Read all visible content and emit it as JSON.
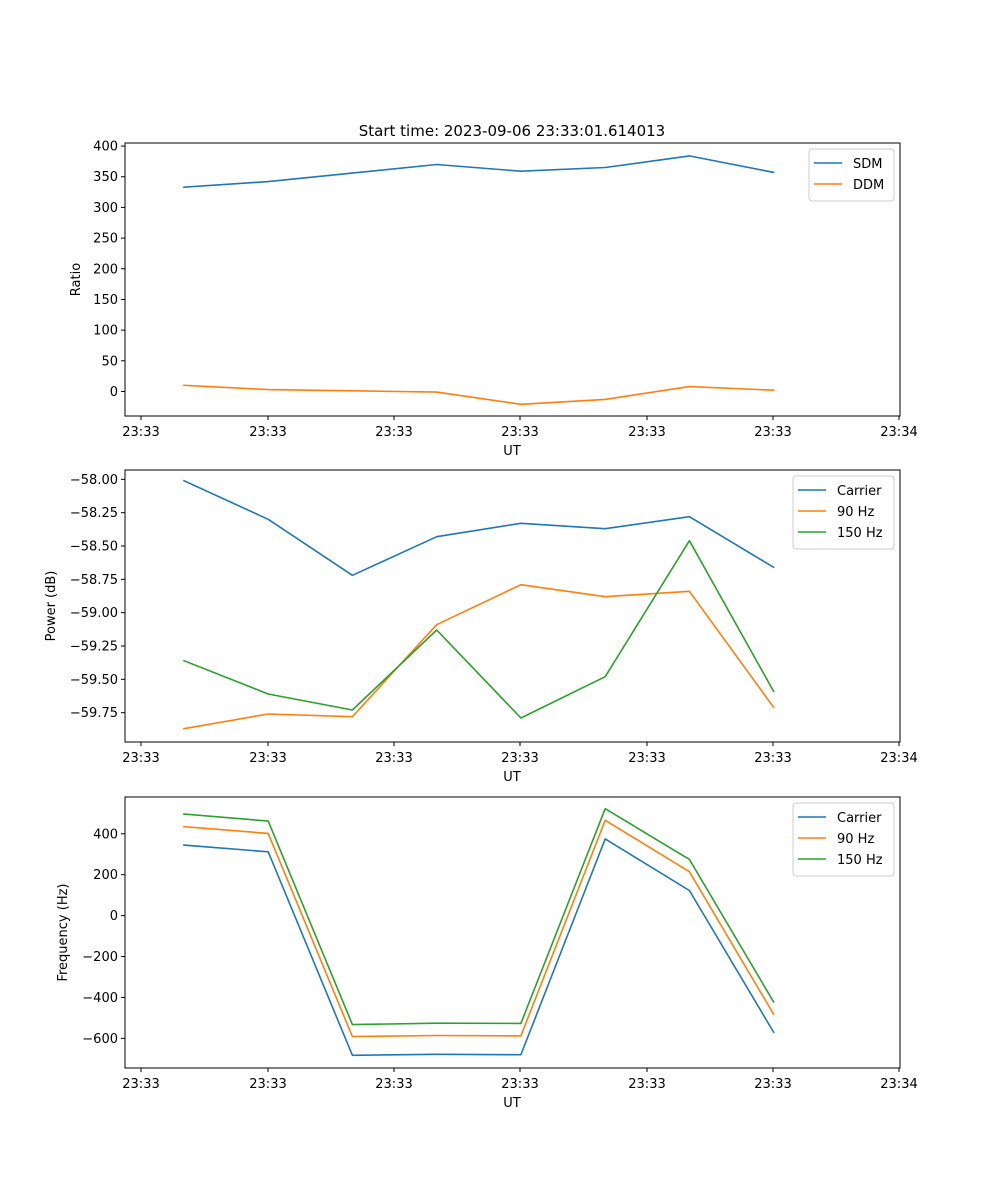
{
  "title": "Start time: 2023-09-06 23:33:01.614013",
  "colors": {
    "blue": "#1f77b4",
    "orange": "#ff7f0e",
    "green": "#2ca02c",
    "axis": "#000000",
    "legend_border": "#cccccc"
  },
  "chart_data": [
    {
      "type": "line",
      "name": "ratio",
      "xlabel": "UT",
      "ylabel": "Ratio",
      "x_tick_labels": [
        "23:33",
        "23:33",
        "23:33",
        "23:33",
        "23:33",
        "23:33",
        "23:34"
      ],
      "x": [
        1,
        2,
        3,
        4,
        5,
        6,
        7,
        8
      ],
      "xlim": [
        0.3,
        9.5
      ],
      "ylim": [
        -40,
        405
      ],
      "y_ticks": [
        0,
        50,
        100,
        150,
        200,
        250,
        300,
        350,
        400
      ],
      "y_tick_labels": [
        "0",
        "50",
        "100",
        "150",
        "200",
        "250",
        "300",
        "350",
        "400"
      ],
      "legend_loc": "upper right",
      "series": [
        {
          "name": "SDM",
          "color": "blue",
          "values": [
            333,
            342,
            356,
            370,
            359,
            365,
            384,
            357
          ]
        },
        {
          "name": "DDM",
          "color": "orange",
          "values": [
            10,
            3,
            1,
            -1,
            -21,
            -13,
            8,
            2
          ]
        }
      ]
    },
    {
      "type": "line",
      "name": "power",
      "xlabel": "UT",
      "ylabel": "Power (dB)",
      "x_tick_labels": [
        "23:33",
        "23:33",
        "23:33",
        "23:33",
        "23:33",
        "23:33",
        "23:34"
      ],
      "x": [
        1,
        2,
        3,
        4,
        5,
        6,
        7,
        8
      ],
      "xlim": [
        0.3,
        9.5
      ],
      "ylim": [
        -59.97,
        -57.93
      ],
      "y_ticks": [
        -58.0,
        -58.25,
        -58.5,
        -58.75,
        -59.0,
        -59.25,
        -59.5,
        -59.75
      ],
      "y_tick_labels": [
        "−58.00",
        "−58.25",
        "−58.50",
        "−58.75",
        "−59.00",
        "−59.25",
        "−59.50",
        "−59.75"
      ],
      "legend_loc": "upper right",
      "series": [
        {
          "name": "Carrier",
          "color": "blue",
          "values": [
            -58.01,
            -58.3,
            -58.72,
            -58.43,
            -58.33,
            -58.37,
            -58.28,
            -58.66
          ]
        },
        {
          "name": "90 Hz",
          "color": "orange",
          "values": [
            -59.87,
            -59.76,
            -59.78,
            -59.09,
            -58.79,
            -58.88,
            -58.84,
            -59.71
          ]
        },
        {
          "name": "150 Hz",
          "color": "green",
          "values": [
            -59.36,
            -59.61,
            -59.73,
            -59.13,
            -59.79,
            -59.48,
            -58.46,
            -59.59
          ]
        }
      ]
    },
    {
      "type": "line",
      "name": "frequency",
      "xlabel": "UT",
      "ylabel": "Frequency (Hz)",
      "x_tick_labels": [
        "23:33",
        "23:33",
        "23:33",
        "23:33",
        "23:33",
        "23:33",
        "23:34"
      ],
      "x": [
        1,
        2,
        3,
        4,
        5,
        6,
        7,
        8
      ],
      "xlim": [
        0.3,
        9.5
      ],
      "ylim": [
        -745,
        580
      ],
      "y_ticks": [
        400,
        200,
        0,
        -200,
        -400,
        -600
      ],
      "y_tick_labels": [
        "400",
        "200",
        "0",
        "−200",
        "−400",
        "−600"
      ],
      "legend_loc": "upper right",
      "series": [
        {
          "name": "Carrier",
          "color": "blue",
          "values": [
            345,
            312,
            -683,
            -678,
            -680,
            375,
            123,
            -570
          ]
        },
        {
          "name": "90 Hz",
          "color": "orange",
          "values": [
            435,
            402,
            -591,
            -586,
            -588,
            466,
            215,
            -482
          ]
        },
        {
          "name": "150 Hz",
          "color": "green",
          "values": [
            497,
            462,
            -533,
            -526,
            -527,
            523,
            275,
            -422
          ]
        }
      ]
    }
  ]
}
